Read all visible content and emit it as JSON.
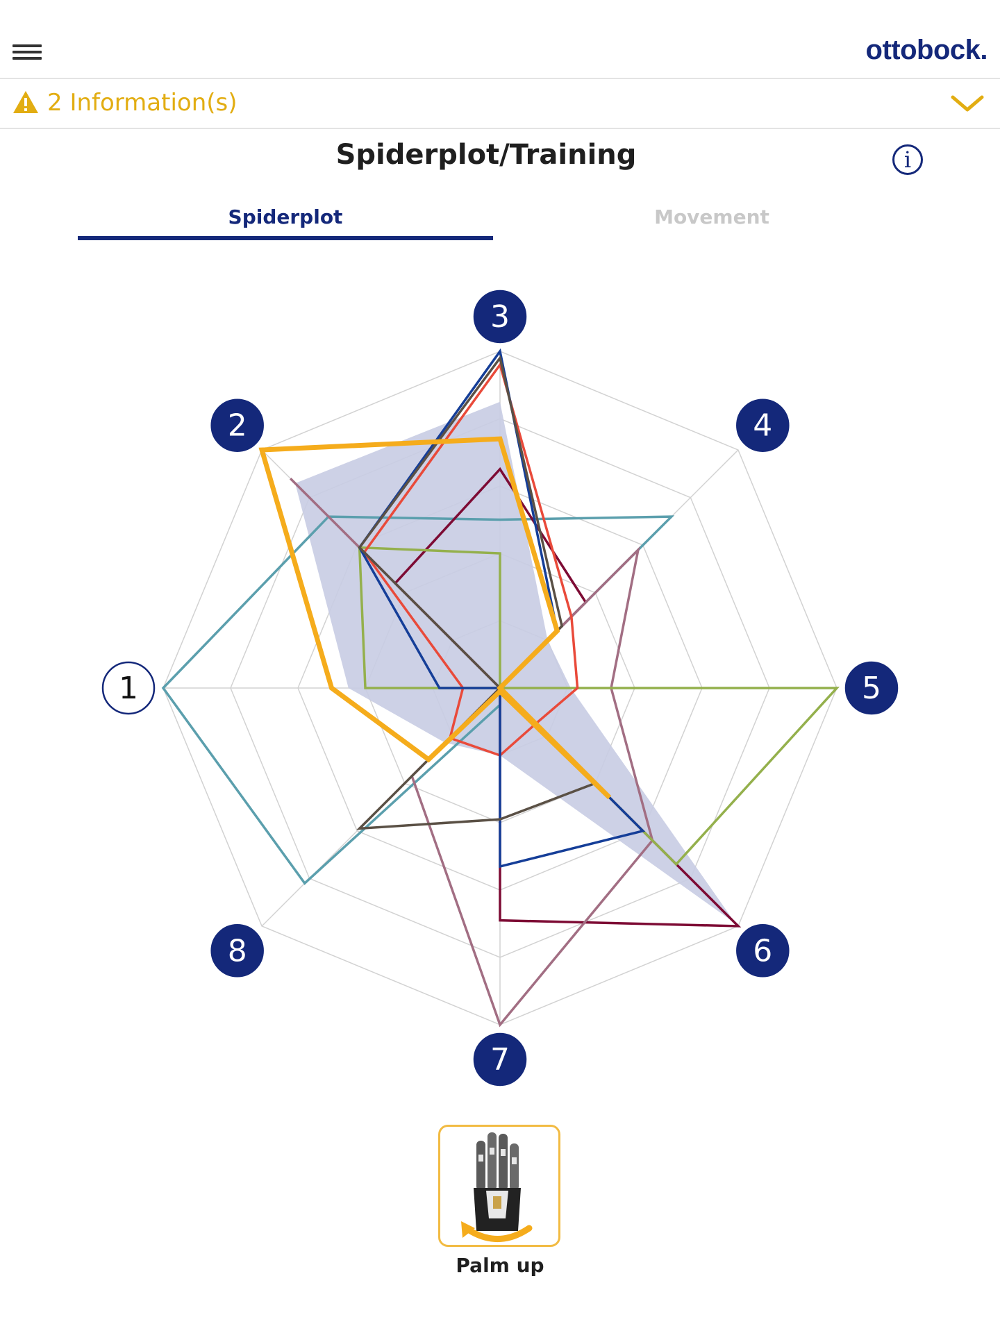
{
  "header": {
    "brand": "ottobock.",
    "menu_icon": "hamburger-menu-icon"
  },
  "info_bar": {
    "text": "2 Information(s)",
    "icon": "warning-triangle-icon",
    "expand_icon": "chevron-down-icon",
    "color": "#e2ad12"
  },
  "page": {
    "title": "Spiderplot/Training",
    "help_icon": "info-circle-icon"
  },
  "tabs": [
    {
      "label": "Spiderplot",
      "active": true
    },
    {
      "label": "Movement",
      "active": false
    }
  ],
  "colors": {
    "primary": "#14287a",
    "accent": "#f5ac1c",
    "grid": "#d2d2d2"
  },
  "chart_data": {
    "type": "radar",
    "axes": [
      "1",
      "2",
      "3",
      "4",
      "5",
      "6",
      "7",
      "8"
    ],
    "rmax": 1,
    "rings": 5,
    "selected_axis": "1",
    "shaded_area": {
      "name": "",
      "values": [
        0.45,
        0.86,
        0.85,
        0.2,
        0.21,
        0.99,
        0.2,
        0.23
      ],
      "fill": "#c8cce3"
    },
    "series": [
      {
        "name": "",
        "color": "#5b9fad",
        "values": [
          1.0,
          0.72,
          0.5,
          0.72,
          0.0,
          0.0,
          0.05,
          0.82
        ]
      },
      {
        "name": "",
        "color": "#7d0b34",
        "values": [
          0.0,
          0.44,
          0.65,
          0.36,
          0.0,
          1.0,
          0.69,
          0.0
        ]
      },
      {
        "name": "",
        "color": "#a26e83",
        "values": [
          0.0,
          0.88,
          0.0,
          0.58,
          0.33,
          0.64,
          1.0,
          0.37
        ]
      },
      {
        "name": "",
        "color": "#94b04c",
        "values": [
          0.4,
          0.59,
          0.4,
          0.0,
          1.0,
          0.74,
          0.0,
          0.0
        ]
      },
      {
        "name": "",
        "color": "#e94a3a",
        "values": [
          0.11,
          0.57,
          0.96,
          0.3,
          0.23,
          0.15,
          0.2,
          0.21
        ]
      },
      {
        "name": "",
        "color": "#153e98",
        "values": [
          0.18,
          0.59,
          1.0,
          0.24,
          0.0,
          0.6,
          0.53,
          0.0
        ]
      },
      {
        "name": "",
        "color": "#5a5045",
        "values": [
          0.0,
          0.59,
          0.98,
          0.26,
          0.0,
          0.4,
          0.39,
          0.59
        ]
      },
      {
        "name": "",
        "color": "#f5ac1c",
        "values": [
          0.5,
          1.0,
          0.74,
          0.24,
          0.0,
          0.46,
          0.01,
          0.3
        ]
      }
    ]
  },
  "movement": {
    "label": "Palm up",
    "icon": "hand-prosthesis-rotate-icon"
  }
}
